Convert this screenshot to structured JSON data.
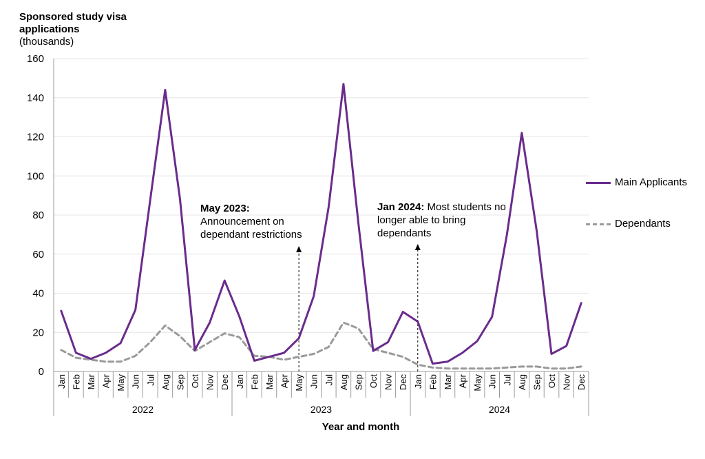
{
  "chart_data": {
    "type": "line",
    "title": "",
    "ylabel": "Sponsored study visa applications",
    "ylabel_unit": "(thousands)",
    "xlabel": "Year and month",
    "ylim": [
      0,
      160
    ],
    "yticks": [
      0,
      20,
      40,
      60,
      80,
      100,
      120,
      140,
      160
    ],
    "grid": true,
    "legend_position": "right",
    "months": [
      "Jan",
      "Feb",
      "Mar",
      "Apr",
      "May",
      "Jun",
      "Jul",
      "Aug",
      "Sep",
      "Oct",
      "Nov",
      "Dec",
      "Jan",
      "Feb",
      "Mar",
      "Apr",
      "May",
      "Jun",
      "Jul",
      "Aug",
      "Sep",
      "Oct",
      "Nov",
      "Dec",
      "Jan",
      "Feb",
      "Mar",
      "Apr",
      "May",
      "Jun",
      "Jul",
      "Aug",
      "Sep",
      "Oct",
      "Nov",
      "Dec"
    ],
    "years": [
      "2022",
      "2023",
      "2024"
    ],
    "series": [
      {
        "name": "Main Applicants",
        "color": "#6a2c8c",
        "style": "solid",
        "values": [
          31,
          9.5,
          6.5,
          9.5,
          14.5,
          31.5,
          88,
          144,
          88,
          11,
          25,
          46.5,
          28,
          5.5,
          7.5,
          9.5,
          17,
          38.5,
          84,
          147,
          76,
          10.5,
          15,
          30.5,
          25.5,
          4,
          5,
          9.5,
          15.5,
          28,
          70,
          122,
          72,
          9,
          13,
          35
        ]
      },
      {
        "name": "Dependants",
        "color": "#9a9a9a",
        "style": "dashed",
        "values": [
          11,
          7,
          6,
          5,
          5,
          8,
          15,
          23.5,
          18,
          10.5,
          15,
          19.5,
          17.5,
          8,
          7.5,
          6,
          7.5,
          9,
          12.5,
          25,
          22,
          11.5,
          9.5,
          7.5,
          3.5,
          2,
          1.5,
          1.5,
          1.5,
          1.5,
          2,
          2.5,
          2.5,
          1.5,
          1.5,
          2.5
        ]
      }
    ],
    "annotations": [
      {
        "month_index": 16,
        "label_bold": "May 2023:",
        "label_text": "Announcement on dependant restrictions"
      },
      {
        "month_index": 24,
        "label_bold": "Jan 2024:",
        "label_text": " Most students no longer able to bring dependants"
      }
    ]
  }
}
